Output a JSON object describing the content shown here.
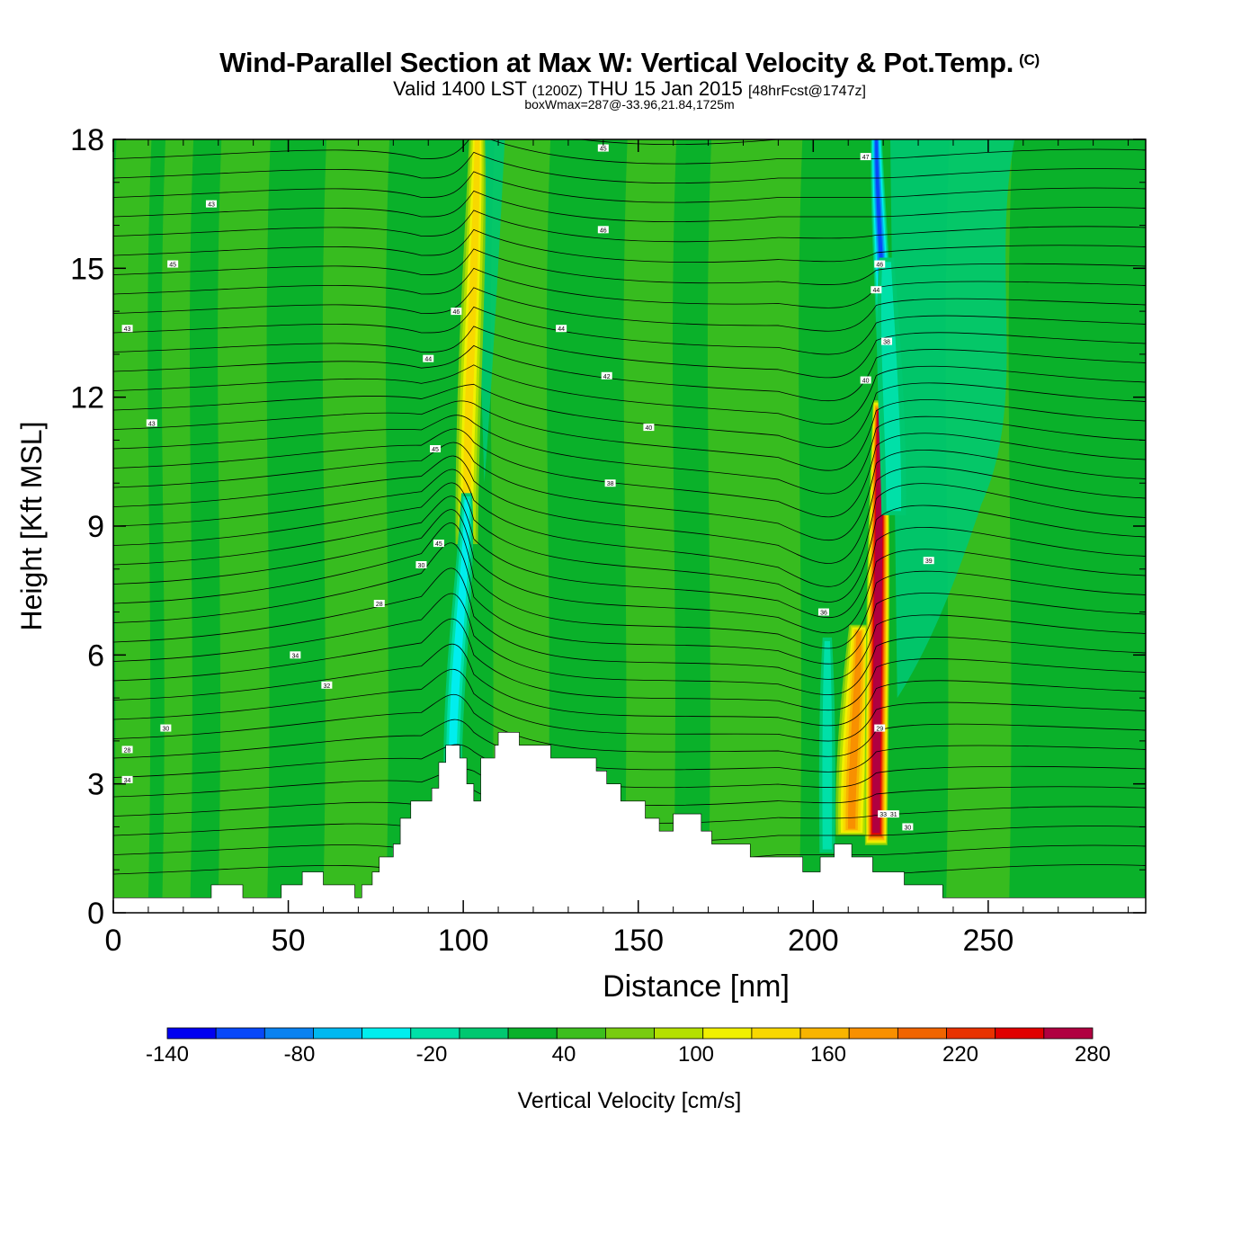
{
  "header": {
    "title": "Wind-Parallel Section at Max W: Vertical Velocity & Pot.Temp.",
    "copyright": "(C)",
    "valid_main": "Valid 1400 LST",
    "valid_utc": "(1200Z)",
    "valid_date": "THU 15 Jan 2015",
    "forecast": "[48hrFcst@1747z]",
    "boxwmax": "boxWmax=287@-33.96,21.84,1725m"
  },
  "chart_data": {
    "type": "heatmap",
    "xlabel": "Distance [nm]",
    "ylabel": "Height [Kft MSL]",
    "xlim": [
      0,
      295
    ],
    "ylim": [
      0,
      18
    ],
    "x_ticks": [
      0,
      50,
      100,
      150,
      200,
      250
    ],
    "y_ticks": [
      0,
      3,
      6,
      9,
      12,
      15,
      18
    ],
    "colorbar": {
      "label": "Vertical Velocity [cm/s]",
      "min": -140,
      "max": 280,
      "step": 20,
      "tick_labels": [
        "-140",
        "-80",
        "-20",
        "40",
        "100",
        "160",
        "220",
        "280"
      ],
      "colors": [
        "#0000f0",
        "#0848f8",
        "#0a82f0",
        "#00b8f0",
        "#00eeee",
        "#00e0a8",
        "#00c870",
        "#0ab12a",
        "#3cbe1e",
        "#78cc10",
        "#b4e000",
        "#f0f000",
        "#f8d800",
        "#f8b400",
        "#f89000",
        "#f06400",
        "#e83200",
        "#e00000",
        "#b00040"
      ]
    },
    "background_level": 0,
    "features": [
      {
        "name": "updraft",
        "x": 101,
        "y_range": [
          9,
          18
        ],
        "w": 80
      },
      {
        "name": "downdraft",
        "x": 96,
        "y_range": [
          4,
          9
        ],
        "w": -60
      },
      {
        "name": "updraft",
        "x": 218,
        "y_range": [
          3,
          11
        ],
        "w": 287
      },
      {
        "name": "downdraft",
        "x": 220,
        "y_range": [
          12,
          18
        ],
        "w": -120
      },
      {
        "name": "downdraft",
        "x": 204,
        "y_range": [
          2,
          6
        ],
        "w": -30
      }
    ],
    "terrain": [
      [
        0,
        0.35
      ],
      [
        28,
        0.35
      ],
      [
        28,
        0.65
      ],
      [
        37,
        0.65
      ],
      [
        37,
        0.35
      ],
      [
        48,
        0.35
      ],
      [
        48,
        0.65
      ],
      [
        54,
        0.65
      ],
      [
        54,
        0.95
      ],
      [
        60,
        0.95
      ],
      [
        60,
        0.65
      ],
      [
        69,
        0.65
      ],
      [
        69,
        0.35
      ],
      [
        71,
        0.35
      ],
      [
        71,
        0.65
      ],
      [
        74,
        0.65
      ],
      [
        74,
        0.95
      ],
      [
        76,
        0.95
      ],
      [
        76,
        1.3
      ],
      [
        80,
        1.3
      ],
      [
        80,
        1.6
      ],
      [
        82,
        1.6
      ],
      [
        82,
        2.2
      ],
      [
        85,
        2.2
      ],
      [
        85,
        2.6
      ],
      [
        91,
        2.6
      ],
      [
        91,
        2.9
      ],
      [
        93,
        2.9
      ],
      [
        93,
        3.5
      ],
      [
        95,
        3.5
      ],
      [
        95,
        3.9
      ],
      [
        99,
        3.9
      ],
      [
        99,
        3.6
      ],
      [
        101,
        3.6
      ],
      [
        101,
        3.0
      ],
      [
        103,
        3.0
      ],
      [
        103,
        2.6
      ],
      [
        105,
        2.6
      ],
      [
        105,
        3.6
      ],
      [
        109,
        3.6
      ],
      [
        109,
        3.9
      ],
      [
        110,
        3.9
      ],
      [
        110,
        4.2
      ],
      [
        116,
        4.2
      ],
      [
        116,
        3.9
      ],
      [
        125,
        3.9
      ],
      [
        125,
        3.6
      ],
      [
        138,
        3.6
      ],
      [
        138,
        3.3
      ],
      [
        141,
        3.3
      ],
      [
        141,
        3.0
      ],
      [
        145,
        3.0
      ],
      [
        145,
        2.6
      ],
      [
        152,
        2.6
      ],
      [
        152,
        2.2
      ],
      [
        156,
        2.2
      ],
      [
        156,
        1.9
      ],
      [
        160,
        1.9
      ],
      [
        160,
        2.3
      ],
      [
        168,
        2.3
      ],
      [
        168,
        1.9
      ],
      [
        171,
        1.9
      ],
      [
        171,
        1.6
      ],
      [
        182,
        1.6
      ],
      [
        182,
        1.3
      ],
      [
        197,
        1.3
      ],
      [
        197,
        0.95
      ],
      [
        202,
        0.95
      ],
      [
        202,
        1.3
      ],
      [
        206,
        1.3
      ],
      [
        206,
        1.6
      ],
      [
        211,
        1.6
      ],
      [
        211,
        1.3
      ],
      [
        217,
        1.3
      ],
      [
        217,
        0.95
      ],
      [
        226,
        0.95
      ],
      [
        226,
        0.65
      ],
      [
        237,
        0.65
      ],
      [
        237,
        0.35
      ],
      [
        295,
        0.35
      ]
    ],
    "theta_contours": [
      {
        "label": "28",
        "x": 76,
        "y": 7.2
      },
      {
        "label": "30",
        "x": 88,
        "y": 8.1
      },
      {
        "label": "32",
        "x": 61,
        "y": 5.3
      },
      {
        "label": "34",
        "x": 52,
        "y": 6.0
      },
      {
        "label": "30",
        "x": 15,
        "y": 4.3
      },
      {
        "label": "28",
        "x": 4,
        "y": 3.8
      },
      {
        "label": "34",
        "x": 4,
        "y": 3.1
      },
      {
        "label": "45",
        "x": 93,
        "y": 8.6
      },
      {
        "label": "45",
        "x": 92,
        "y": 10.8
      },
      {
        "label": "44",
        "x": 90,
        "y": 12.9
      },
      {
        "label": "46",
        "x": 98,
        "y": 14.0
      },
      {
        "label": "44",
        "x": 128,
        "y": 13.6
      },
      {
        "label": "42",
        "x": 141,
        "y": 12.5
      },
      {
        "label": "40",
        "x": 153,
        "y": 11.3
      },
      {
        "label": "38",
        "x": 142,
        "y": 10.0
      },
      {
        "label": "46",
        "x": 140,
        "y": 15.9
      },
      {
        "label": "45",
        "x": 140,
        "y": 17.8
      },
      {
        "label": "43",
        "x": 28,
        "y": 16.5
      },
      {
        "label": "45",
        "x": 17,
        "y": 15.1
      },
      {
        "label": "43",
        "x": 4,
        "y": 13.6
      },
      {
        "label": "43",
        "x": 11,
        "y": 11.4
      },
      {
        "label": "47",
        "x": 215,
        "y": 17.6
      },
      {
        "label": "46",
        "x": 219,
        "y": 15.1
      },
      {
        "label": "44",
        "x": 218,
        "y": 14.5
      },
      {
        "label": "38",
        "x": 221,
        "y": 13.3
      },
      {
        "label": "40",
        "x": 215,
        "y": 12.4
      },
      {
        "label": "39",
        "x": 233,
        "y": 8.2
      },
      {
        "label": "36",
        "x": 203,
        "y": 7.0
      },
      {
        "label": "29",
        "x": 219,
        "y": 4.3
      },
      {
        "label": "33",
        "x": 220,
        "y": 2.3
      },
      {
        "label": "31",
        "x": 223,
        "y": 2.3
      },
      {
        "label": "30",
        "x": 227,
        "y": 2.0
      }
    ]
  }
}
